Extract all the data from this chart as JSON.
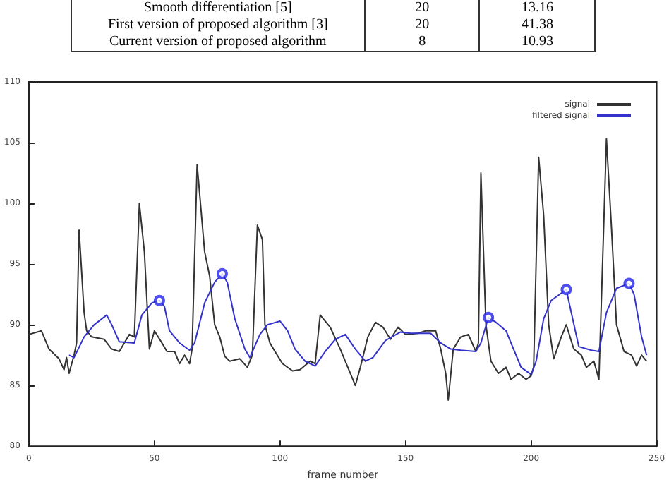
{
  "chart_data": {
    "type": "line",
    "xlabel": "frame number",
    "annotations": [
      "Smooth differentiation [5]",
      "20",
      "13.16",
      "First version of proposed algorithm [3]",
      "20",
      "41.38",
      "Current version of proposed algorithm",
      "8",
      "10.93"
    ],
    "xlim": [
      0,
      250
    ],
    "xticks": [
      0,
      50,
      100,
      150,
      200,
      250
    ],
    "ylim": [
      80,
      110
    ],
    "yticks": [
      80,
      85,
      90,
      95,
      100,
      105,
      110
    ],
    "grid": false,
    "legend": "top right",
    "marker": "none",
    "line_style": "solid",
    "series": [
      {
        "name": "signal",
        "color": "#333333",
        "x": [
          0,
          5,
          8,
          12,
          14,
          15,
          16,
          18,
          19,
          20,
          22,
          23,
          25,
          30,
          33,
          36,
          40,
          42,
          44,
          46,
          48,
          50,
          53,
          55,
          58,
          60,
          62,
          64,
          65,
          67,
          70,
          72,
          74,
          76,
          78,
          80,
          84,
          87,
          89,
          91,
          93,
          94,
          96,
          98,
          101,
          105,
          108,
          112,
          114,
          116,
          120,
          124,
          128,
          130,
          132,
          135,
          138,
          141,
          144,
          147,
          150,
          155,
          158,
          162,
          164,
          166,
          167,
          169,
          172,
          175,
          178,
          179,
          180,
          182,
          184,
          187,
          190,
          192,
          195,
          198,
          200,
          201,
          203,
          205,
          207,
          209,
          212,
          214,
          217,
          220,
          222,
          225,
          227,
          230,
          232,
          234,
          237,
          240,
          242,
          244,
          246
        ],
        "values": [
          89.2,
          89.5,
          88.0,
          87.2,
          86.3,
          87.3,
          86.0,
          87.5,
          88.5,
          97.8,
          91.0,
          89.5,
          89.0,
          88.8,
          88.0,
          87.8,
          89.2,
          89.0,
          100.0,
          96.0,
          88.0,
          89.5,
          88.5,
          87.8,
          87.8,
          86.8,
          87.5,
          86.8,
          88.0,
          103.2,
          96.0,
          94.0,
          90.0,
          89.0,
          87.4,
          87.0,
          87.2,
          86.5,
          87.5,
          98.2,
          97.0,
          90.0,
          88.5,
          87.8,
          86.8,
          86.2,
          86.3,
          87.0,
          86.8,
          90.8,
          89.8,
          88.0,
          86.0,
          85.0,
          86.5,
          89.0,
          90.2,
          89.8,
          88.8,
          89.8,
          89.2,
          89.3,
          89.5,
          89.5,
          88.0,
          86.0,
          83.8,
          88.0,
          89.0,
          89.2,
          87.8,
          88.5,
          102.5,
          90.0,
          87.0,
          86.0,
          86.5,
          85.5,
          86.0,
          85.5,
          85.8,
          86.5,
          103.8,
          99.0,
          90.0,
          87.2,
          89.0,
          90.0,
          88.0,
          87.5,
          86.5,
          87.0,
          85.5,
          105.3,
          98.0,
          90.0,
          87.8,
          87.5,
          86.6,
          87.5,
          87.0
        ]
      },
      {
        "name": "filtered signal",
        "color": "#3333cc",
        "x": [
          16,
          18,
          22,
          26,
          31,
          33,
          36,
          42,
          45,
          49,
          52,
          54,
          56,
          60,
          64,
          66,
          70,
          74,
          77,
          79,
          82,
          86,
          88,
          92,
          95,
          100,
          103,
          106,
          110,
          114,
          118,
          122,
          126,
          130,
          134,
          137,
          142,
          148,
          152,
          160,
          164,
          168,
          172,
          178,
          180,
          183,
          186,
          190,
          193,
          196,
          200,
          202,
          205,
          208,
          214,
          216,
          219,
          224,
          227,
          230,
          234,
          239,
          241,
          244,
          246
        ],
        "values": [
          87.5,
          87.3,
          89.0,
          90.0,
          90.8,
          90.0,
          88.6,
          88.5,
          90.8,
          91.8,
          92.0,
          91.5,
          89.5,
          88.5,
          87.9,
          88.5,
          91.8,
          93.5,
          94.2,
          93.5,
          90.5,
          88.0,
          87.3,
          89.2,
          90.0,
          90.3,
          89.5,
          88.0,
          87.0,
          86.6,
          87.8,
          88.8,
          89.2,
          88.0,
          87.0,
          87.3,
          88.7,
          89.4,
          89.3,
          89.3,
          88.5,
          88.0,
          87.9,
          87.8,
          88.5,
          90.6,
          90.2,
          89.5,
          88.0,
          86.5,
          85.9,
          87.0,
          90.5,
          92.0,
          92.9,
          91.0,
          88.2,
          87.9,
          87.8,
          91.0,
          93.0,
          93.4,
          92.5,
          89.0,
          87.5
        ]
      },
      {
        "type": "scatter",
        "marker": "circle",
        "color": "#2222ee",
        "x": [
          52,
          77,
          183,
          214,
          239
        ],
        "values": [
          92.0,
          94.2,
          90.6,
          92.9,
          93.4
        ]
      }
    ]
  }
}
